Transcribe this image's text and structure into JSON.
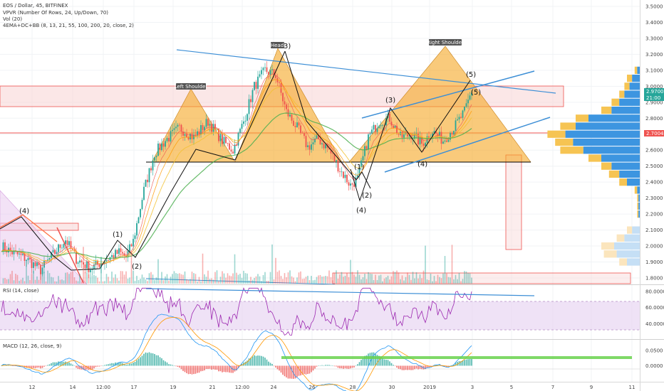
{
  "header": {
    "title": "EOS / Dollar, 45, BITFINEX",
    "indicators": [
      "VPVR (Number Of Rows, 24, Up/Down, 70)",
      "Vol (20)",
      "4EMA+DC+BB (8, 13, 21, 55, 100, 200, 20, close, 2)"
    ]
  },
  "panels": {
    "rsi_title": "RSI (14, close)",
    "macd_title": "MACD (12, 26, close, 9)"
  },
  "colors": {
    "up": "#26a69a",
    "down": "#ef5350",
    "pattern_fill": "#f5a623",
    "trend_line": "#3d8fd6",
    "resistance": "#ef5350",
    "rsi_line": "#9c27b0",
    "ema_green": "#4caf50",
    "ema_yellow": "#f2c12e",
    "ema_orange": "#ff9800"
  },
  "chart_data": {
    "type": "candlestick",
    "x_ticks": [
      "12",
      "14",
      "12:00",
      "17",
      "19",
      "21",
      "12:00",
      "24",
      "26",
      "28",
      "30",
      "2019",
      "3",
      "5",
      "7",
      "9",
      "11"
    ],
    "price_axis": {
      "ticks": [
        "3.5000",
        "3.4000",
        "3.3000",
        "3.2000",
        "3.1000",
        "3.0000",
        "2.9000",
        "2.8000",
        "2.7000",
        "2.6000",
        "2.5000",
        "2.4000",
        "2.3000",
        "2.2000",
        "2.1000",
        "2.0000",
        "1.9000",
        "1.8000"
      ],
      "ylim": [
        1.77,
        3.53
      ],
      "current_price": "2.9700",
      "countdown": "21:00",
      "red_level": "2.7004"
    },
    "rsi_axis": {
      "ticks": [
        "80.0000",
        "60.0000",
        "40.0000"
      ],
      "ylim": [
        22,
        86
      ]
    },
    "macd_axis": {
      "ticks": [
        "0.0500",
        "0.0000"
      ],
      "ylim": [
        -0.05,
        0.08
      ]
    },
    "patterns": [
      {
        "label": "Left Shoulder"
      },
      {
        "label": "Head"
      },
      {
        "label": "Right Shoulder"
      }
    ],
    "wave_labels": [
      "(4)",
      "(1)",
      "(2)",
      "3)",
      "(1)",
      "(2)",
      "(4)",
      "(3)",
      "(4)",
      "(5)",
      "(5)"
    ],
    "price_anchors": [
      [
        0,
        2.0
      ],
      [
        6,
        1.96
      ],
      [
        14,
        1.92
      ],
      [
        22,
        1.85
      ],
      [
        30,
        1.96
      ],
      [
        36,
        2.04
      ],
      [
        42,
        1.92
      ],
      [
        50,
        1.86
      ],
      [
        58,
        1.91
      ],
      [
        66,
        1.96
      ],
      [
        70,
        1.93
      ],
      [
        74,
        2.03
      ],
      [
        80,
        2.35
      ],
      [
        86,
        2.58
      ],
      [
        92,
        2.66
      ],
      [
        100,
        2.74
      ],
      [
        108,
        2.68
      ],
      [
        116,
        2.78
      ],
      [
        124,
        2.66
      ],
      [
        130,
        2.6
      ],
      [
        136,
        2.78
      ],
      [
        142,
        3.0
      ],
      [
        148,
        3.1
      ],
      [
        154,
        3.07
      ],
      [
        160,
        2.84
      ],
      [
        166,
        2.74
      ],
      [
        172,
        2.62
      ],
      [
        178,
        2.67
      ],
      [
        184,
        2.6
      ],
      [
        190,
        2.48
      ],
      [
        196,
        2.38
      ],
      [
        200,
        2.42
      ],
      [
        206,
        2.68
      ],
      [
        212,
        2.78
      ],
      [
        218,
        2.8
      ],
      [
        224,
        2.68
      ],
      [
        230,
        2.7
      ],
      [
        236,
        2.64
      ],
      [
        242,
        2.72
      ],
      [
        248,
        2.66
      ],
      [
        254,
        2.74
      ],
      [
        260,
        2.84
      ],
      [
        264,
        2.97
      ]
    ],
    "vpvr": [
      {
        "price": 3.1,
        "up": 0.04,
        "down": 0.02
      },
      {
        "price": 3.05,
        "up": 0.1,
        "down": 0.06
      },
      {
        "price": 3.0,
        "up": 0.12,
        "down": 0.08
      },
      {
        "price": 2.95,
        "up": 0.16,
        "down": 0.12
      },
      {
        "price": 2.9,
        "up": 0.22,
        "down": 0.16
      },
      {
        "price": 2.85,
        "up": 0.3,
        "down": 0.22
      },
      {
        "price": 2.8,
        "up": 0.5,
        "down": 0.4
      },
      {
        "price": 2.75,
        "up": 0.62,
        "down": 0.5
      },
      {
        "price": 2.7,
        "up": 0.72,
        "down": 0.58
      },
      {
        "price": 2.65,
        "up": 0.66,
        "down": 0.52
      },
      {
        "price": 2.6,
        "up": 0.62,
        "down": 0.44
      },
      {
        "price": 2.55,
        "up": 0.4,
        "down": 0.3
      },
      {
        "price": 2.5,
        "up": 0.3,
        "down": 0.22
      },
      {
        "price": 2.45,
        "up": 0.24,
        "down": 0.16
      },
      {
        "price": 2.4,
        "up": 0.16,
        "down": 0.1
      },
      {
        "price": 2.35,
        "up": 0.04,
        "down": 0.02
      },
      {
        "price": 2.3,
        "up": 0.02,
        "down": 0.01
      },
      {
        "price": 2.25,
        "up": 0.02,
        "down": 0.01
      },
      {
        "price": 2.2,
        "up": 0.02,
        "down": 0.01
      },
      {
        "price": 2.1,
        "up": 0.1,
        "down": 0.06
      },
      {
        "price": 2.05,
        "up": 0.18,
        "down": 0.12
      },
      {
        "price": 2.0,
        "up": 0.3,
        "down": 0.2
      },
      {
        "price": 1.95,
        "up": 0.28,
        "down": 0.18
      },
      {
        "price": 1.9,
        "up": 0.16,
        "down": 0.1
      }
    ]
  }
}
